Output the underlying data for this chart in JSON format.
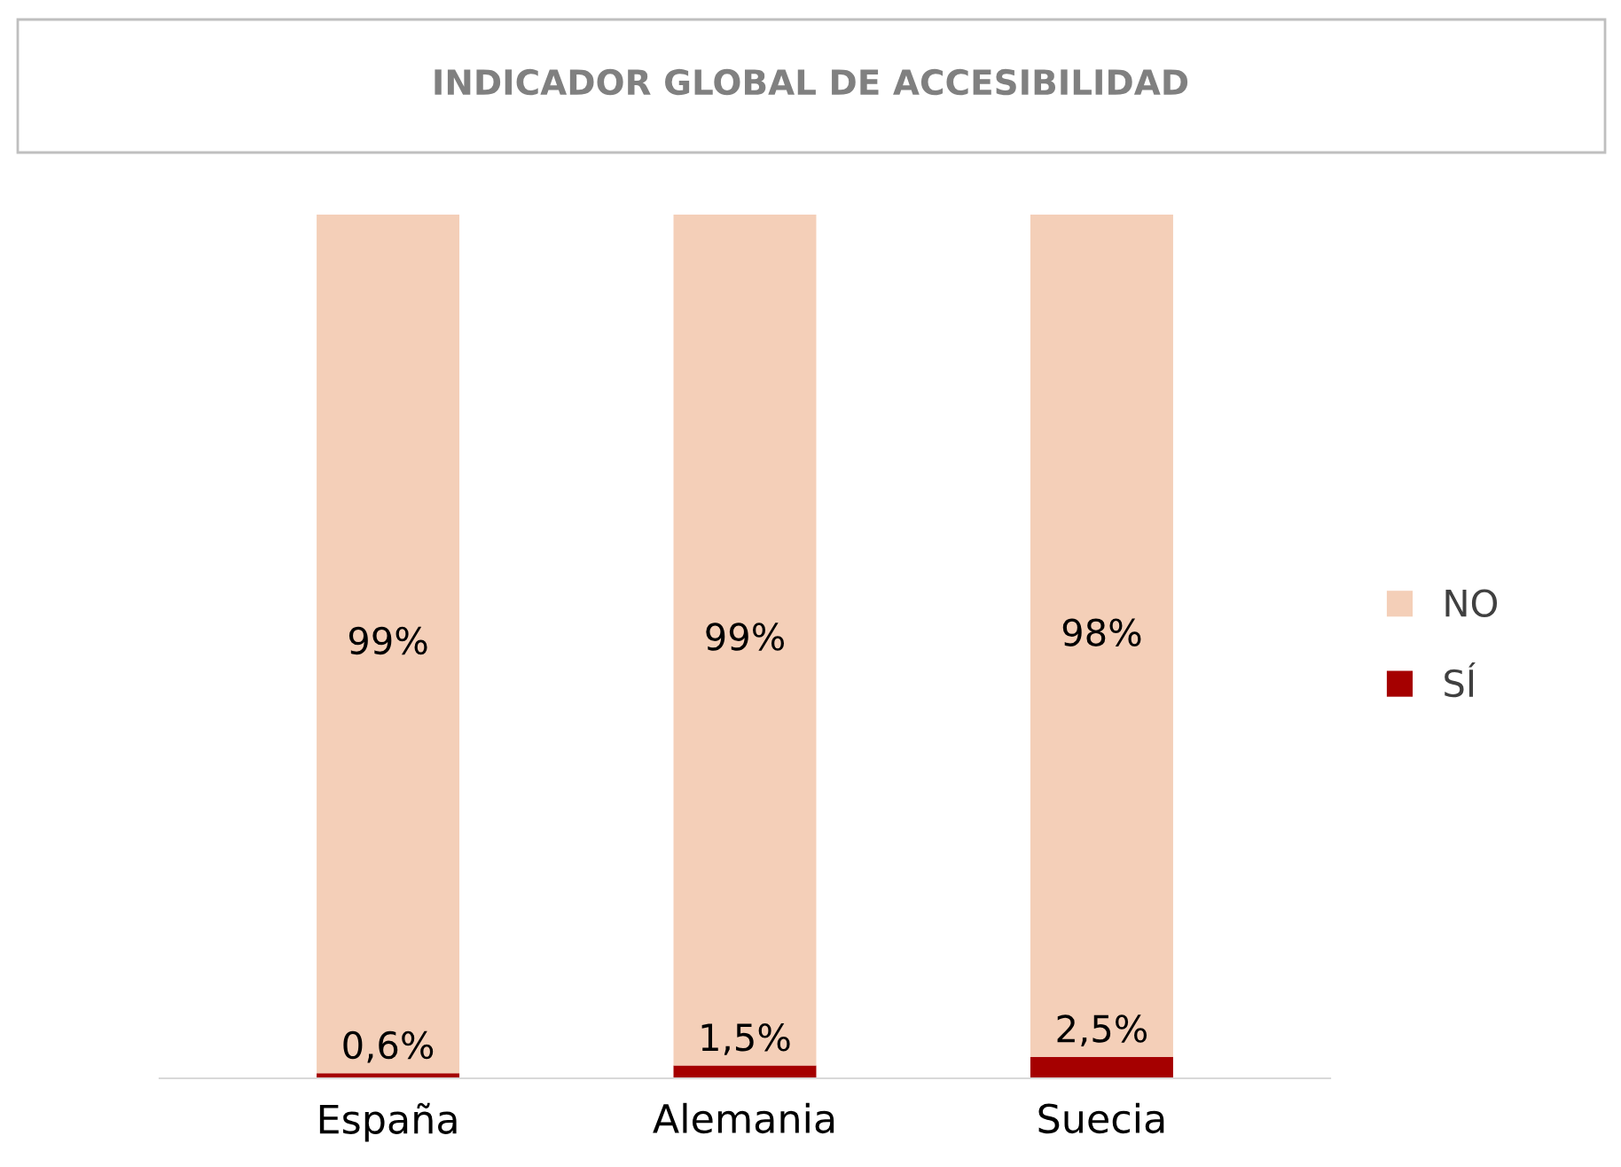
{
  "chart_data": {
    "type": "bar",
    "stacked": true,
    "title": "INDICADOR GLOBAL DE ACCESIBILIDAD",
    "categories": [
      "España",
      "Alemania",
      "Suecia"
    ],
    "series": [
      {
        "name": "SÍ",
        "color": "#a50000",
        "values": [
          0.6,
          1.5,
          2.5
        ],
        "value_labels": [
          "0,6%",
          "1,5%",
          "2,5%"
        ]
      },
      {
        "name": "NO",
        "color": "#f4cfb8",
        "values": [
          99.4,
          98.5,
          97.5
        ],
        "value_labels": [
          "99%",
          "99%",
          "98%"
        ]
      }
    ],
    "ylim": [
      0,
      100
    ],
    "tick_labels": "x",
    "legend": "right",
    "grid": false
  }
}
